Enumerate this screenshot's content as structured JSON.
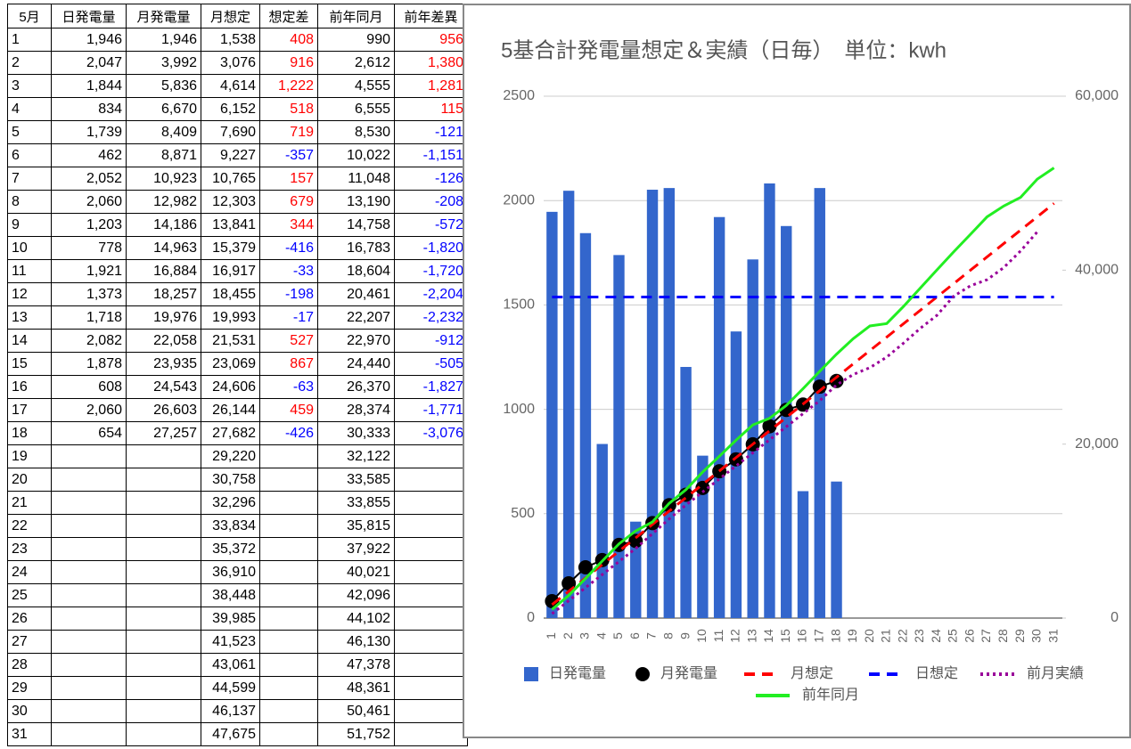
{
  "table": {
    "header": [
      "5月",
      "日発電量",
      "月発電量",
      "月想定",
      "想定差",
      "前年同月",
      "前年差異"
    ],
    "rows": [
      [
        "1",
        "1,946",
        "1,946",
        "1,538",
        "408",
        "990",
        "956"
      ],
      [
        "2",
        "2,047",
        "3,992",
        "3,076",
        "916",
        "2,612",
        "1,380"
      ],
      [
        "3",
        "1,844",
        "5,836",
        "4,614",
        "1,222",
        "4,555",
        "1,281"
      ],
      [
        "4",
        "834",
        "6,670",
        "6,152",
        "518",
        "6,555",
        "115"
      ],
      [
        "5",
        "1,739",
        "8,409",
        "7,690",
        "719",
        "8,530",
        "-121"
      ],
      [
        "6",
        "462",
        "8,871",
        "9,227",
        "-357",
        "10,022",
        "-1,151"
      ],
      [
        "7",
        "2,052",
        "10,923",
        "10,765",
        "157",
        "11,048",
        "-126"
      ],
      [
        "8",
        "2,060",
        "12,982",
        "12,303",
        "679",
        "13,190",
        "-208"
      ],
      [
        "9",
        "1,203",
        "14,186",
        "13,841",
        "344",
        "14,758",
        "-572"
      ],
      [
        "10",
        "778",
        "14,963",
        "15,379",
        "-416",
        "16,783",
        "-1,820"
      ],
      [
        "11",
        "1,921",
        "16,884",
        "16,917",
        "-33",
        "18,604",
        "-1,720"
      ],
      [
        "12",
        "1,373",
        "18,257",
        "18,455",
        "-198",
        "20,461",
        "-2,204"
      ],
      [
        "13",
        "1,718",
        "19,976",
        "19,993",
        "-17",
        "22,207",
        "-2,232"
      ],
      [
        "14",
        "2,082",
        "22,058",
        "21,531",
        "527",
        "22,970",
        "-912"
      ],
      [
        "15",
        "1,878",
        "23,935",
        "23,069",
        "867",
        "24,440",
        "-505"
      ],
      [
        "16",
        "608",
        "24,543",
        "24,606",
        "-63",
        "26,370",
        "-1,827"
      ],
      [
        "17",
        "2,060",
        "26,603",
        "26,144",
        "459",
        "28,374",
        "-1,771"
      ],
      [
        "18",
        "654",
        "27,257",
        "27,682",
        "-426",
        "30,333",
        "-3,076"
      ],
      [
        "19",
        null,
        null,
        "29,220",
        null,
        "32,122",
        null
      ],
      [
        "20",
        null,
        null,
        "30,758",
        null,
        "33,585",
        null
      ],
      [
        "21",
        null,
        null,
        "32,296",
        null,
        "33,855",
        null
      ],
      [
        "22",
        null,
        null,
        "33,834",
        null,
        "35,815",
        null
      ],
      [
        "23",
        null,
        null,
        "35,372",
        null,
        "37,922",
        null
      ],
      [
        "24",
        null,
        null,
        "36,910",
        null,
        "40,021",
        null
      ],
      [
        "25",
        null,
        null,
        "38,448",
        null,
        "42,096",
        null
      ],
      [
        "26",
        null,
        null,
        "39,985",
        null,
        "44,102",
        null
      ],
      [
        "27",
        null,
        null,
        "41,523",
        null,
        "46,130",
        null
      ],
      [
        "28",
        null,
        null,
        "43,061",
        null,
        "47,378",
        null
      ],
      [
        "29",
        null,
        null,
        "44,599",
        null,
        "48,361",
        null
      ],
      [
        "30",
        null,
        null,
        "46,137",
        null,
        "50,461",
        null
      ],
      [
        "31",
        null,
        null,
        "47,675",
        null,
        "51,752",
        null
      ]
    ],
    "positive_color": "#ff0000",
    "negative_color": "#0000ff"
  },
  "chart_data": {
    "type": "combo",
    "title": "5基合計発電量想定＆実績（日毎）　単位：kwh",
    "categories": [
      "1",
      "2",
      "3",
      "4",
      "5",
      "6",
      "7",
      "8",
      "9",
      "10",
      "11",
      "12",
      "13",
      "14",
      "15",
      "16",
      "17",
      "18",
      "19",
      "20",
      "21",
      "22",
      "23",
      "24",
      "25",
      "26",
      "27",
      "28",
      "29",
      "30",
      "31"
    ],
    "ylim": [
      0,
      2500
    ],
    "yticks": [
      0,
      500,
      1000,
      1500,
      2000,
      2500
    ],
    "y2lim": [
      0,
      60000
    ],
    "y2ticks": [
      0,
      {
        "value": 20000,
        "label": "20,000"
      },
      {
        "value": 40000,
        "label": "40,000"
      },
      {
        "value": 60000,
        "label": "60,000"
      }
    ],
    "grid": true,
    "legend": "bottom",
    "series": [
      {
        "name": "日発電量",
        "color": "#3366cc",
        "style": "bar",
        "values": [
          1946,
          2047,
          1844,
          834,
          1739,
          462,
          2052,
          2060,
          1203,
          778,
          1921,
          1373,
          1718,
          2082,
          1878,
          608,
          2060,
          654,
          null,
          null,
          null,
          null,
          null,
          null,
          null,
          null,
          null,
          null,
          null,
          null,
          null
        ]
      },
      {
        "name": "月発電量",
        "color": "#000000",
        "style": "dots",
        "axis": "y2",
        "values": [
          1946,
          3992,
          5836,
          6670,
          8409,
          8871,
          10923,
          12982,
          14186,
          14963,
          16884,
          18257,
          19976,
          22058,
          23935,
          24543,
          26603,
          27257,
          null,
          null,
          null,
          null,
          null,
          null,
          null,
          null,
          null,
          null,
          null,
          null,
          null
        ]
      },
      {
        "name": "月想定",
        "color": "#ff0000",
        "style": "dashed",
        "axis": "y2",
        "values": [
          1538,
          3076,
          4614,
          6152,
          7690,
          9227,
          10765,
          12303,
          13841,
          15379,
          16917,
          18455,
          19993,
          21531,
          23069,
          24606,
          26144,
          27682,
          29220,
          30758,
          32296,
          33834,
          35372,
          36910,
          38448,
          39985,
          41523,
          43061,
          44599,
          46137,
          47675
        ]
      },
      {
        "name": "日想定",
        "color": "#0000ff",
        "style": "dashed",
        "values": [
          1538,
          1538,
          1538,
          1538,
          1538,
          1538,
          1538,
          1538,
          1538,
          1538,
          1538,
          1538,
          1538,
          1538,
          1538,
          1538,
          1538,
          1538,
          1538,
          1538,
          1538,
          1538,
          1538,
          1538,
          1538,
          1538,
          1538,
          1538,
          1538,
          1538,
          1538
        ]
      },
      {
        "name": "前月実績",
        "color": "#990099",
        "style": "dotted",
        "axis": "y2",
        "values": [
          500,
          2000,
          3500,
          5000,
          6500,
          8000,
          9700,
          11400,
          13000,
          14500,
          16000,
          17500,
          19000,
          20500,
          22000,
          23500,
          25000,
          26800,
          28000,
          28800,
          30000,
          31600,
          33300,
          34800,
          37000,
          38200,
          38900,
          40300,
          42200,
          44400,
          null
        ]
      },
      {
        "name": "前年同月",
        "color": "#22ee22",
        "style": "line",
        "axis": "y2",
        "values": [
          990,
          2612,
          4555,
          6555,
          8530,
          10022,
          11048,
          13190,
          14758,
          16783,
          18604,
          20461,
          22207,
          22970,
          24440,
          26370,
          28374,
          30333,
          32122,
          33585,
          33855,
          35815,
          37922,
          40021,
          42096,
          44102,
          46130,
          47378,
          48361,
          50461,
          51752
        ]
      }
    ]
  }
}
